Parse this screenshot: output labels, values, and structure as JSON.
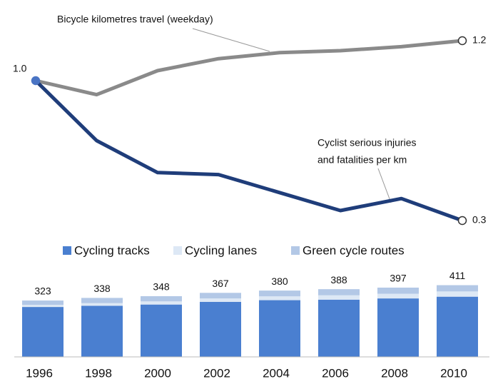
{
  "chart_data": [
    {
      "type": "line",
      "categories": [
        "1996",
        "1998",
        "2000",
        "2002",
        "2004",
        "2006",
        "2008",
        "2010"
      ],
      "series": [
        {
          "name": "Bicycle kilometres travel (weekday)",
          "color": "#8a8a8a",
          "values": [
            1.0,
            0.93,
            1.05,
            1.11,
            1.14,
            1.15,
            1.17,
            1.2
          ],
          "value_labels": [
            null,
            null,
            null,
            null,
            null,
            null,
            null,
            "1.2"
          ]
        },
        {
          "name": "Cyclist serious injuries and fatalities per km",
          "color": "#1f3d7a",
          "values": [
            1.0,
            0.7,
            0.54,
            0.53,
            0.44,
            0.35,
            0.41,
            0.3
          ],
          "value_labels": [
            "1.0",
            null,
            null,
            null,
            null,
            null,
            null,
            "0.3"
          ]
        }
      ],
      "annotations": [
        "Bicycle kilometres travel (weekday)",
        "Cyclist serious injuries",
        "and fatalities per km"
      ],
      "ylim": [
        0.25,
        1.25
      ]
    },
    {
      "type": "bar",
      "categories": [
        "1996",
        "1998",
        "2000",
        "2002",
        "2004",
        "2006",
        "2008",
        "2010"
      ],
      "series": [
        {
          "name": "Cycling tracks",
          "color": "#4a7fd0",
          "values": [
            286,
            293,
            300,
            315,
            325,
            328,
            335,
            345
          ]
        },
        {
          "name": "Cycling lanes",
          "color": "#dde8f5",
          "values": [
            12,
            15,
            18,
            20,
            22,
            25,
            27,
            30
          ]
        },
        {
          "name": "Green cycle routes",
          "color": "#b3c8e6",
          "values": [
            25,
            30,
            30,
            32,
            33,
            35,
            35,
            36
          ]
        }
      ],
      "totals": [
        323,
        338,
        348,
        367,
        380,
        388,
        397,
        411
      ],
      "ylim": [
        0,
        450
      ]
    }
  ]
}
